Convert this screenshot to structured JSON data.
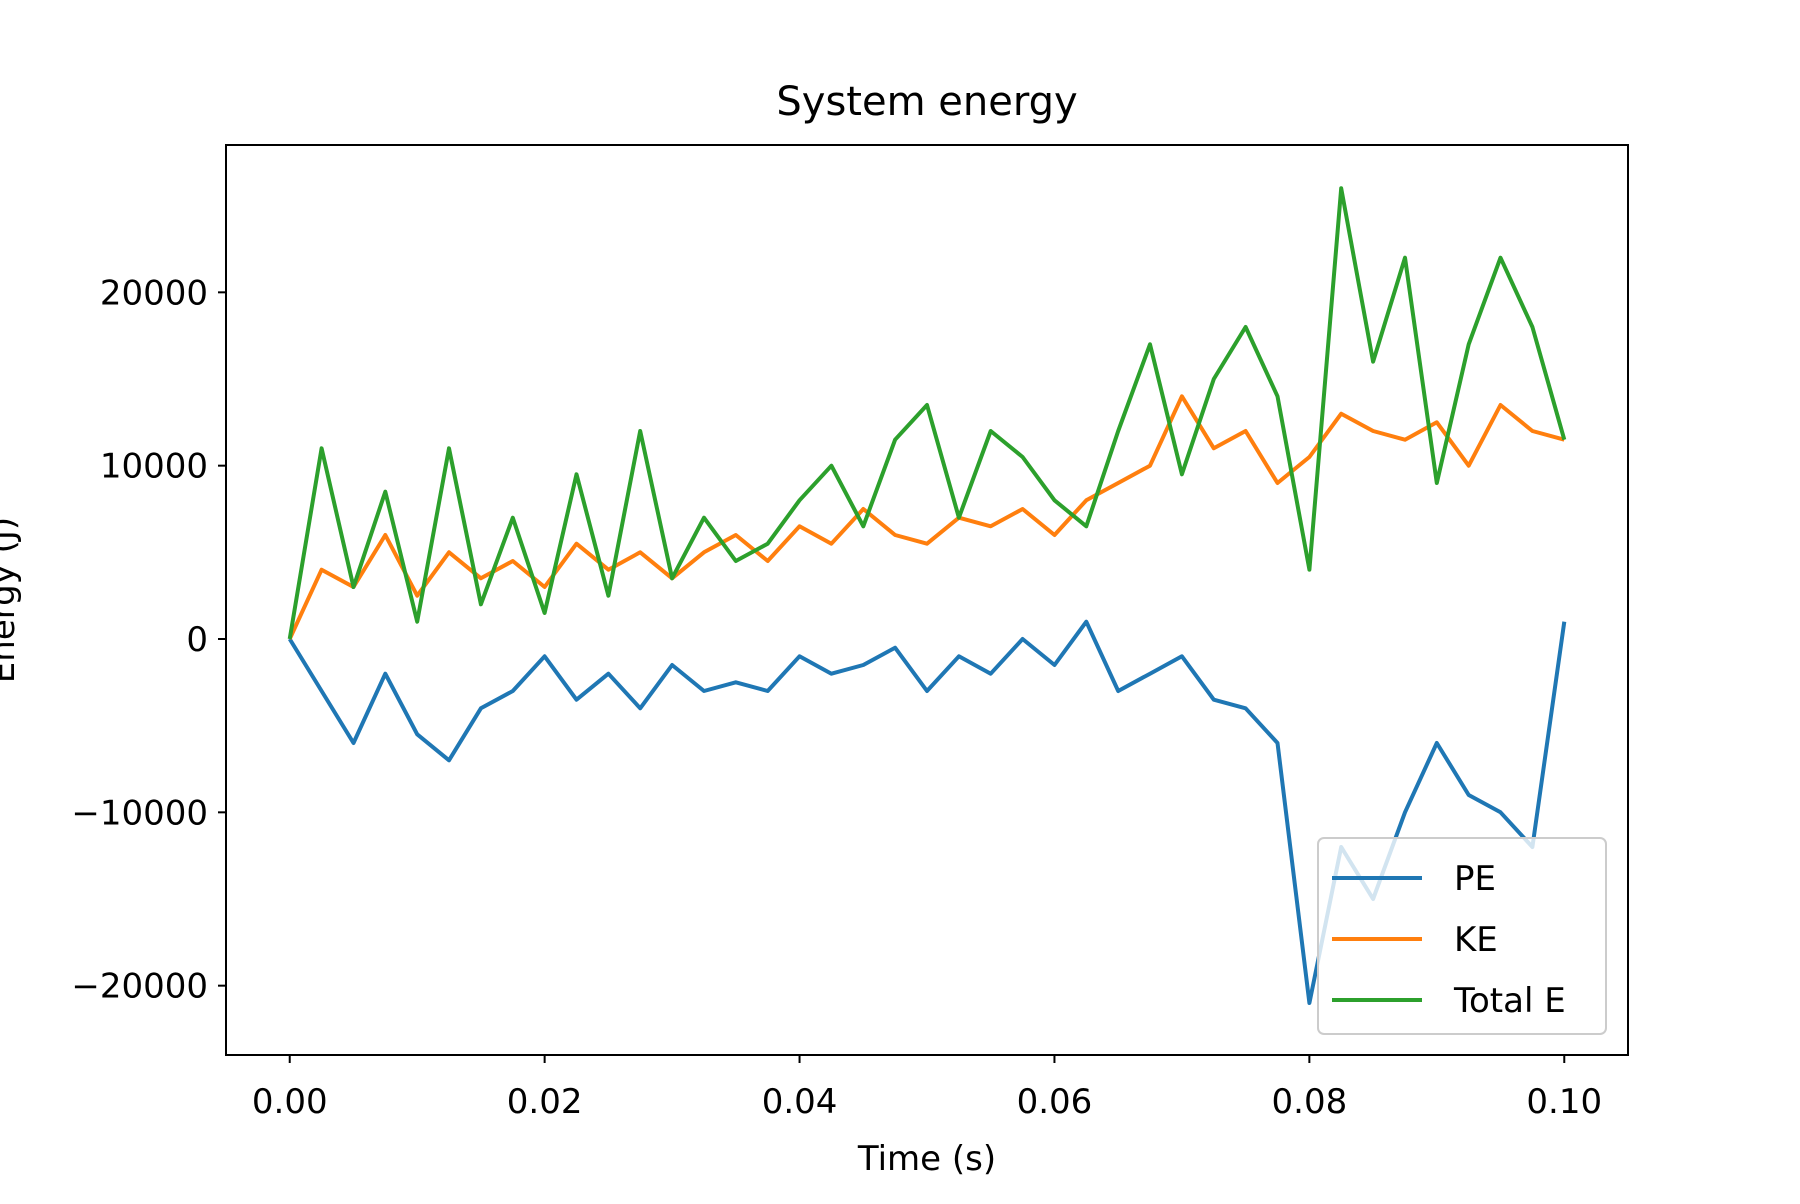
{
  "chart_data": {
    "type": "line",
    "title": "System energy",
    "xlabel": "Time (s)",
    "ylabel": "Energy (J)",
    "xlim": [
      -0.005,
      0.105
    ],
    "ylim": [
      -24000,
      28500
    ],
    "xticks": [
      0.0,
      0.02,
      0.04,
      0.06,
      0.08,
      0.1
    ],
    "xtick_labels": [
      "0.00",
      "0.02",
      "0.04",
      "0.06",
      "0.08",
      "0.10"
    ],
    "yticks": [
      -20000,
      -10000,
      0,
      10000,
      20000
    ],
    "ytick_labels": [
      "−20000",
      "−10000",
      "0",
      "10000",
      "20000"
    ],
    "grid": false,
    "legend_position": "lower-right",
    "x": [
      0.0,
      0.0025,
      0.005,
      0.0075,
      0.01,
      0.0125,
      0.015,
      0.0175,
      0.02,
      0.0225,
      0.025,
      0.0275,
      0.03,
      0.0325,
      0.035,
      0.0375,
      0.04,
      0.0425,
      0.045,
      0.0475,
      0.05,
      0.0525,
      0.055,
      0.0575,
      0.06,
      0.0625,
      0.065,
      0.0675,
      0.07,
      0.0725,
      0.075,
      0.0775,
      0.08,
      0.0825,
      0.085,
      0.0875,
      0.09,
      0.0925,
      0.095,
      0.0975,
      0.1
    ],
    "series": [
      {
        "name": "PE",
        "color": "#1f77b4",
        "values": [
          0,
          -3000,
          -6000,
          -2000,
          -5500,
          -7000,
          -4000,
          -3000,
          -1000,
          -3500,
          -2000,
          -4000,
          -1500,
          -3000,
          -2500,
          -3000,
          -1000,
          -2000,
          -1500,
          -500,
          -3000,
          -1000,
          -2000,
          0,
          -1500,
          1000,
          -3000,
          -2000,
          -1000,
          -3500,
          -4000,
          -6000,
          -21000,
          -12000,
          -15000,
          -10000,
          -6000,
          -9000,
          -10000,
          -12000,
          1000
        ]
      },
      {
        "name": "KE",
        "color": "#ff7f0e",
        "values": [
          0,
          4000,
          3000,
          6000,
          2500,
          5000,
          3500,
          4500,
          3000,
          5500,
          4000,
          5000,
          3500,
          5000,
          6000,
          4500,
          6500,
          5500,
          7500,
          6000,
          5500,
          7000,
          6500,
          7500,
          6000,
          8000,
          9000,
          10000,
          14000,
          11000,
          12000,
          9000,
          10500,
          13000,
          12000,
          11500,
          12500,
          10000,
          13500,
          12000,
          11500
        ]
      },
      {
        "name": "Total E",
        "color": "#2ca02c",
        "values": [
          0,
          11000,
          3000,
          8500,
          1000,
          11000,
          2000,
          7000,
          1500,
          9500,
          2500,
          12000,
          3500,
          7000,
          4500,
          5500,
          8000,
          10000,
          6500,
          11500,
          13500,
          7000,
          12000,
          10500,
          8000,
          6500,
          12000,
          17000,
          9500,
          15000,
          18000,
          14000,
          4000,
          26000,
          16000,
          22000,
          9000,
          17000,
          22000,
          18000,
          11500
        ]
      }
    ]
  }
}
